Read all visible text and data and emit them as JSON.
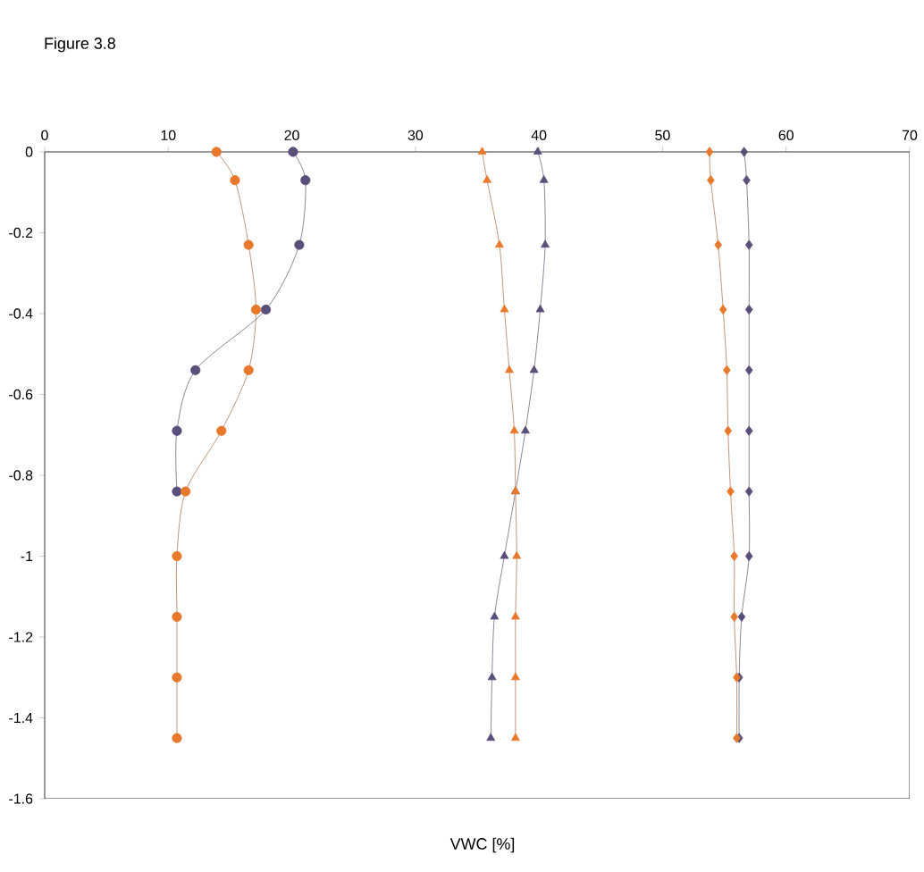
{
  "chart_data": {
    "type": "line",
    "title": "Figure 3.8",
    "xlabel": "VWC [%]",
    "xlim": [
      0,
      70
    ],
    "xticks": [
      0,
      10,
      20,
      30,
      40,
      50,
      60,
      70
    ],
    "ylim": [
      -1.6,
      0
    ],
    "yticks": [
      0,
      -0.2,
      -0.4,
      -0.6,
      -0.8,
      -1,
      -1.2,
      -1.4,
      -1.6
    ],
    "series": [
      {
        "color": "#e8782c",
        "marker": "circle",
        "x": [
          13.9,
          15.4,
          16.5,
          17.1,
          16.5,
          14.3,
          11.4,
          10.7,
          10.7,
          10.7,
          10.7
        ],
        "values": [
          0,
          -0.07,
          -0.23,
          -0.39,
          -0.54,
          -0.69,
          -0.84,
          -1.0,
          -1.15,
          -1.3,
          -1.45
        ]
      },
      {
        "color": "#5a4e7a",
        "marker": "circle",
        "x": [
          20.1,
          21.1,
          20.6,
          17.9,
          12.2,
          10.7,
          10.7
        ],
        "values": [
          0,
          -0.07,
          -0.23,
          -0.39,
          -0.54,
          -0.69,
          -0.84
        ]
      },
      {
        "color": "#e8782c",
        "marker": "triangle",
        "x": [
          35.4,
          35.8,
          36.8,
          37.2,
          37.6,
          38.0,
          38.1,
          38.2,
          38.1,
          38.1,
          38.1
        ],
        "values": [
          0,
          -0.07,
          -0.23,
          -0.39,
          -0.54,
          -0.69,
          -0.84,
          -1.0,
          -1.15,
          -1.3,
          -1.45
        ]
      },
      {
        "color": "#5a4e7a",
        "marker": "triangle",
        "x": [
          39.9,
          40.4,
          40.5,
          40.1,
          39.6,
          38.9,
          38.1,
          37.2,
          36.4,
          36.2,
          36.1
        ],
        "values": [
          0,
          -0.07,
          -0.23,
          -0.39,
          -0.54,
          -0.69,
          -0.84,
          -1.0,
          -1.15,
          -1.3,
          -1.45
        ]
      },
      {
        "color": "#e8782c",
        "marker": "diamond",
        "x": [
          53.8,
          53.9,
          54.5,
          54.9,
          55.2,
          55.3,
          55.5,
          55.8,
          55.8,
          56.0,
          56.0
        ],
        "values": [
          0,
          -0.07,
          -0.23,
          -0.39,
          -0.54,
          -0.69,
          -0.84,
          -1.0,
          -1.15,
          -1.3,
          -1.45
        ]
      },
      {
        "color": "#5a4e7a",
        "marker": "diamond",
        "x": [
          56.6,
          56.8,
          57.0,
          57.0,
          57.0,
          57.0,
          57.0,
          57.0,
          56.4,
          56.2,
          56.2
        ],
        "values": [
          0,
          -0.07,
          -0.23,
          -0.39,
          -0.54,
          -0.69,
          -0.84,
          -1.0,
          -1.15,
          -1.3,
          -1.45
        ]
      }
    ]
  }
}
